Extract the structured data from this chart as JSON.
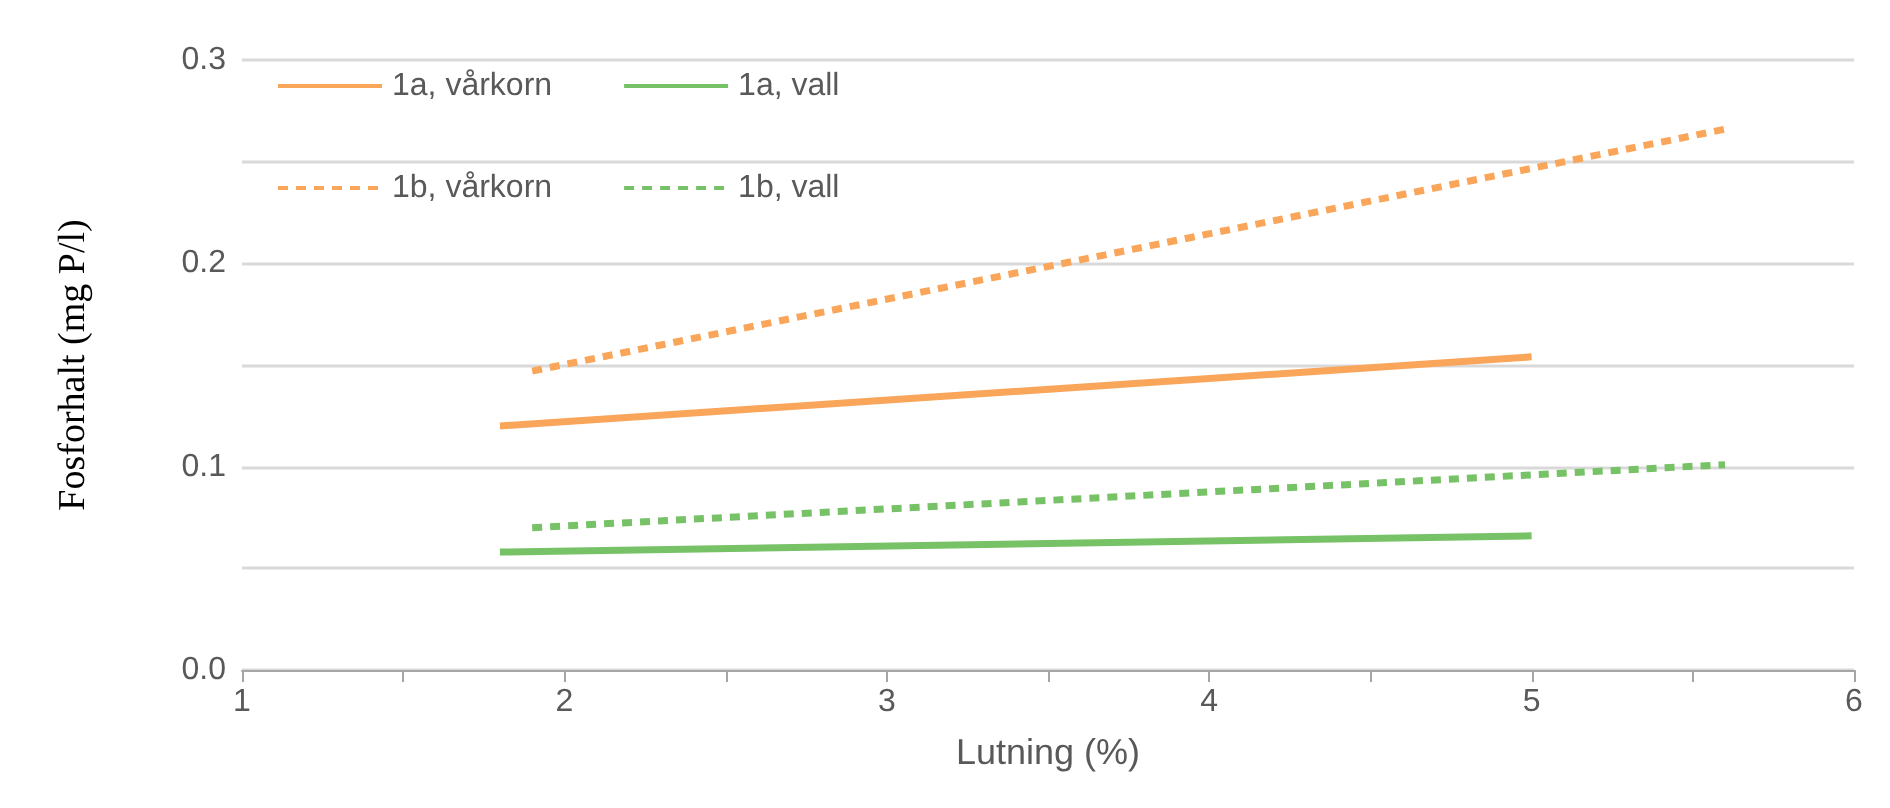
{
  "chart_data": {
    "type": "line",
    "xlabel": "Lutning (%)",
    "ylabel": "Fosforhalt (mg P/l)",
    "xlim": [
      1,
      6
    ],
    "xticks": [
      1,
      {
        "value": 1.5,
        "label": null
      },
      2,
      {
        "value": 2.5,
        "label": null
      },
      3,
      {
        "value": 3.5,
        "label": null
      },
      4,
      {
        "value": 4.5,
        "label": null
      },
      5,
      {
        "value": 5.5,
        "label": null
      },
      6
    ],
    "ylim": [
      0,
      0.3
    ],
    "yticks": [
      {
        "value": 0,
        "label": "0.0"
      },
      {
        "value": 0.05,
        "label": null
      },
      0.1,
      {
        "value": 0.15,
        "label": null
      },
      0.2,
      {
        "value": 0.25,
        "label": null
      },
      0.3
    ],
    "grid": "y",
    "legend": "top left",
    "marker": "none",
    "series": [
      {
        "name": "1a, vårkorn",
        "color": "#f9a55a",
        "line_style": "solid",
        "x": [
          1.8,
          5
        ],
        "values": [
          0.12,
          0.154
        ]
      },
      {
        "name": "1a, vall",
        "color": "#77c267",
        "line_style": "solid",
        "x": [
          1.8,
          5
        ],
        "values": [
          0.058,
          0.066
        ]
      },
      {
        "name": "1b, vårkorn",
        "color": "#f9a55a",
        "line_style": "dashed",
        "x": [
          1.9,
          5.6
        ],
        "values": [
          0.147,
          0.266
        ]
      },
      {
        "name": "1b, vall",
        "color": "#77c267",
        "line_style": "dashed",
        "x": [
          1.9,
          5.6
        ],
        "values": [
          0.07,
          0.101
        ]
      }
    ]
  }
}
